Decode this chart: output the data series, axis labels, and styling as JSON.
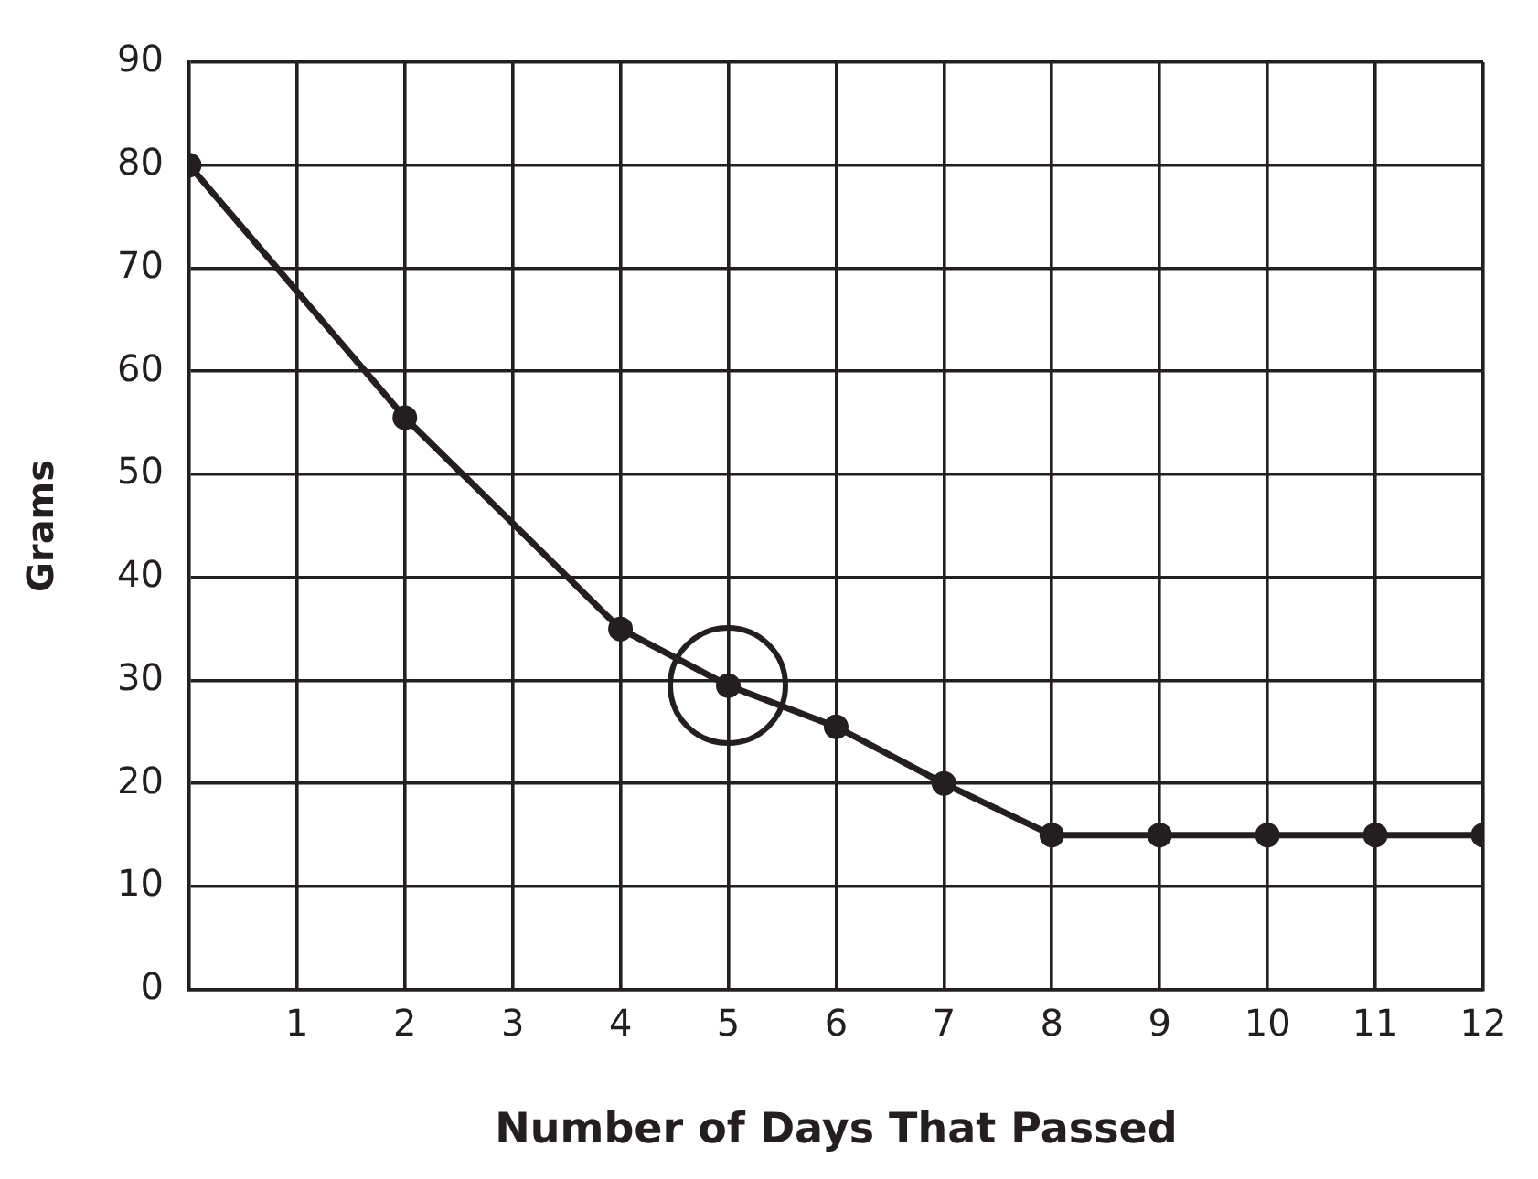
{
  "chart_data": {
    "type": "line",
    "xlabel": "Number of Days That Passed",
    "ylabel": "Grams",
    "x": [
      0,
      2,
      4,
      5,
      6,
      7,
      8,
      9,
      10,
      11,
      12
    ],
    "series": [
      {
        "color": "#231f20",
        "values": [
          80,
          55.5,
          35,
          29.5,
          25.5,
          20,
          15,
          15,
          15,
          15,
          15
        ]
      }
    ],
    "xlim": [
      0,
      12
    ],
    "xticks": [
      1,
      2,
      3,
      4,
      5,
      6,
      7,
      8,
      9,
      10,
      11,
      12
    ],
    "ylim": [
      0,
      90
    ],
    "yticks": [
      0,
      10,
      20,
      30,
      40,
      50,
      60,
      70,
      80,
      90
    ],
    "grid": true,
    "marker": "circle",
    "line_style": "solid",
    "legend": false
  }
}
